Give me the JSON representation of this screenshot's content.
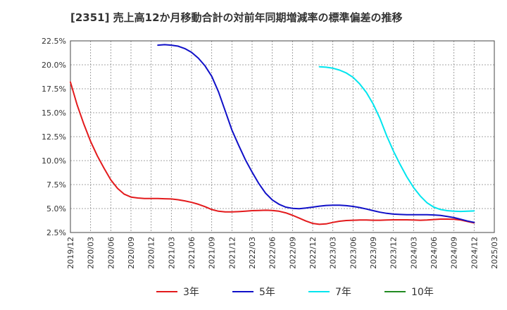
{
  "chart_data": {
    "type": "line",
    "title": "[2351]  売上高12か月移動合計の対前年同期増減率の標準偏差の推移",
    "xlabel": "",
    "ylabel": "",
    "x_ticks": [
      "2019/12",
      "2020/03",
      "2020/06",
      "2020/09",
      "2020/12",
      "2021/03",
      "2021/06",
      "2021/09",
      "2021/12",
      "2022/03",
      "2022/06",
      "2022/09",
      "2022/12",
      "2023/03",
      "2023/06",
      "2023/09",
      "2023/12",
      "2024/03",
      "2024/06",
      "2024/09",
      "2024/12",
      "2025/03"
    ],
    "y_ticks": [
      "2.5%",
      "5.0%",
      "7.5%",
      "10.0%",
      "12.5%",
      "15.0%",
      "17.5%",
      "20.0%",
      "22.5%"
    ],
    "ylim": [
      2.5,
      22.5
    ],
    "grid": true,
    "legend_position": "bottom",
    "series": [
      {
        "name": "3年",
        "color": "#e31a1c",
        "points": [
          [
            "2019/12",
            18.2
          ],
          [
            "2020/01",
            15.8
          ],
          [
            "2020/02",
            13.8
          ],
          [
            "2020/03",
            12.0
          ],
          [
            "2020/04",
            10.5
          ],
          [
            "2020/05",
            9.2
          ],
          [
            "2020/06",
            8.0
          ],
          [
            "2020/07",
            7.1
          ],
          [
            "2020/08",
            6.5
          ],
          [
            "2020/09",
            6.2
          ],
          [
            "2020/10",
            6.1
          ],
          [
            "2020/11",
            6.05
          ],
          [
            "2020/12",
            6.05
          ],
          [
            "2021/01",
            6.05
          ],
          [
            "2021/02",
            6.02
          ],
          [
            "2021/03",
            6.0
          ],
          [
            "2021/04",
            5.92
          ],
          [
            "2021/05",
            5.8
          ],
          [
            "2021/06",
            5.65
          ],
          [
            "2021/07",
            5.45
          ],
          [
            "2021/08",
            5.2
          ],
          [
            "2021/09",
            4.9
          ],
          [
            "2021/10",
            4.72
          ],
          [
            "2021/11",
            4.65
          ],
          [
            "2021/12",
            4.65
          ],
          [
            "2022/01",
            4.68
          ],
          [
            "2022/02",
            4.72
          ],
          [
            "2022/03",
            4.78
          ],
          [
            "2022/04",
            4.8
          ],
          [
            "2022/05",
            4.82
          ],
          [
            "2022/06",
            4.8
          ],
          [
            "2022/07",
            4.72
          ],
          [
            "2022/08",
            4.55
          ],
          [
            "2022/09",
            4.3
          ],
          [
            "2022/10",
            4.0
          ],
          [
            "2022/11",
            3.7
          ],
          [
            "2022/12",
            3.45
          ],
          [
            "2023/01",
            3.35
          ],
          [
            "2023/02",
            3.4
          ],
          [
            "2023/03",
            3.55
          ],
          [
            "2023/04",
            3.68
          ],
          [
            "2023/05",
            3.75
          ],
          [
            "2023/06",
            3.78
          ],
          [
            "2023/07",
            3.8
          ],
          [
            "2023/08",
            3.8
          ],
          [
            "2023/09",
            3.78
          ],
          [
            "2023/10",
            3.78
          ],
          [
            "2023/11",
            3.8
          ],
          [
            "2023/12",
            3.82
          ],
          [
            "2024/01",
            3.82
          ],
          [
            "2024/02",
            3.82
          ],
          [
            "2024/03",
            3.8
          ],
          [
            "2024/04",
            3.78
          ],
          [
            "2024/05",
            3.8
          ],
          [
            "2024/06",
            3.85
          ],
          [
            "2024/07",
            3.9
          ],
          [
            "2024/08",
            3.9
          ],
          [
            "2024/09",
            3.88
          ],
          [
            "2024/10",
            3.8
          ],
          [
            "2024/11",
            3.65
          ],
          [
            "2024/12",
            3.5
          ]
        ]
      },
      {
        "name": "5年",
        "color": "#1010c8",
        "points": [
          [
            "2021/01",
            22.05
          ],
          [
            "2021/02",
            22.1
          ],
          [
            "2021/03",
            22.05
          ],
          [
            "2021/04",
            21.95
          ],
          [
            "2021/05",
            21.7
          ],
          [
            "2021/06",
            21.3
          ],
          [
            "2021/07",
            20.7
          ],
          [
            "2021/08",
            19.9
          ],
          [
            "2021/09",
            18.8
          ],
          [
            "2021/10",
            17.2
          ],
          [
            "2021/11",
            15.2
          ],
          [
            "2021/12",
            13.2
          ],
          [
            "2022/01",
            11.6
          ],
          [
            "2022/02",
            10.1
          ],
          [
            "2022/03",
            8.8
          ],
          [
            "2022/04",
            7.6
          ],
          [
            "2022/05",
            6.6
          ],
          [
            "2022/06",
            5.9
          ],
          [
            "2022/07",
            5.45
          ],
          [
            "2022/08",
            5.15
          ],
          [
            "2022/09",
            5.02
          ],
          [
            "2022/10",
            4.98
          ],
          [
            "2022/11",
            5.05
          ],
          [
            "2022/12",
            5.15
          ],
          [
            "2023/01",
            5.25
          ],
          [
            "2023/02",
            5.32
          ],
          [
            "2023/03",
            5.35
          ],
          [
            "2023/04",
            5.35
          ],
          [
            "2023/05",
            5.3
          ],
          [
            "2023/06",
            5.22
          ],
          [
            "2023/07",
            5.1
          ],
          [
            "2023/08",
            4.95
          ],
          [
            "2023/09",
            4.78
          ],
          [
            "2023/10",
            4.62
          ],
          [
            "2023/11",
            4.5
          ],
          [
            "2023/12",
            4.42
          ],
          [
            "2024/01",
            4.38
          ],
          [
            "2024/02",
            4.36
          ],
          [
            "2024/03",
            4.35
          ],
          [
            "2024/04",
            4.35
          ],
          [
            "2024/05",
            4.35
          ],
          [
            "2024/06",
            4.33
          ],
          [
            "2024/07",
            4.28
          ],
          [
            "2024/08",
            4.18
          ],
          [
            "2024/09",
            4.05
          ],
          [
            "2024/10",
            3.88
          ],
          [
            "2024/11",
            3.7
          ],
          [
            "2024/12",
            3.55
          ]
        ]
      },
      {
        "name": "7年",
        "color": "#00e5ee",
        "points": [
          [
            "2023/01",
            19.8
          ],
          [
            "2023/02",
            19.75
          ],
          [
            "2023/03",
            19.65
          ],
          [
            "2023/04",
            19.45
          ],
          [
            "2023/05",
            19.15
          ],
          [
            "2023/06",
            18.7
          ],
          [
            "2023/07",
            18.0
          ],
          [
            "2023/08",
            17.1
          ],
          [
            "2023/09",
            15.9
          ],
          [
            "2023/10",
            14.4
          ],
          [
            "2023/11",
            12.6
          ],
          [
            "2023/12",
            11.0
          ],
          [
            "2024/01",
            9.6
          ],
          [
            "2024/02",
            8.3
          ],
          [
            "2024/03",
            7.2
          ],
          [
            "2024/04",
            6.3
          ],
          [
            "2024/05",
            5.6
          ],
          [
            "2024/06",
            5.15
          ],
          [
            "2024/07",
            4.9
          ],
          [
            "2024/08",
            4.78
          ],
          [
            "2024/09",
            4.72
          ],
          [
            "2024/10",
            4.7
          ],
          [
            "2024/11",
            4.72
          ],
          [
            "2024/12",
            4.75
          ]
        ]
      },
      {
        "name": "10年",
        "color": "#228b22",
        "points": []
      }
    ]
  }
}
